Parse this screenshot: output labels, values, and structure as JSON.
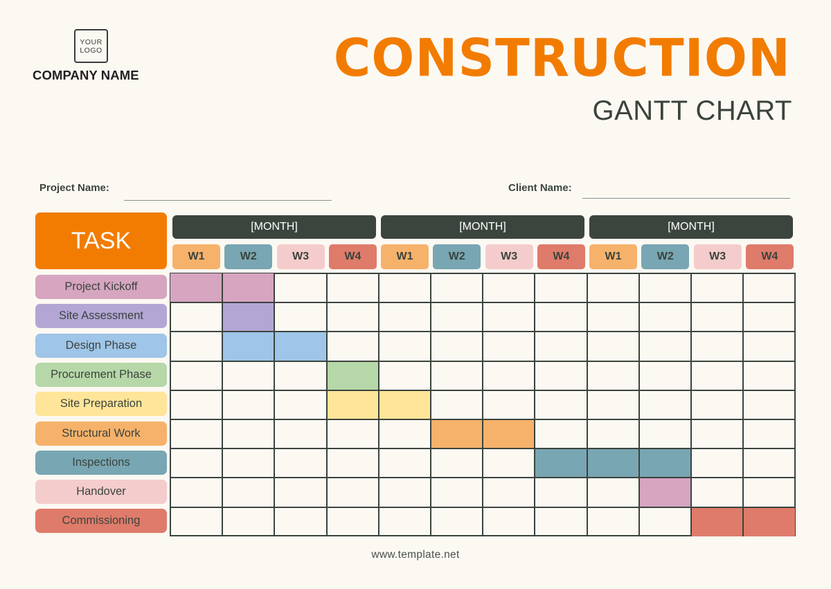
{
  "header": {
    "logo_line1": "YOUR",
    "logo_line2": "LOGO",
    "company_name": "COMPANY NAME",
    "title": "CONSTRUCTION",
    "subtitle": "GANTT CHART"
  },
  "fields": {
    "project_label": "Project Name:",
    "project_value": "",
    "client_label": "Client Name:",
    "client_value": ""
  },
  "table": {
    "task_header": "TASK",
    "months": [
      "[MONTH]",
      "[MONTH]",
      "[MONTH]"
    ],
    "weeks": [
      "W1",
      "W2",
      "W3",
      "W4",
      "W1",
      "W2",
      "W3",
      "W4",
      "W1",
      "W2",
      "W3",
      "W4"
    ],
    "week_colors": [
      "#f6b26b",
      "#78a6b2",
      "#f4cccc",
      "#df7b6a",
      "#f6b26b",
      "#78a6b2",
      "#f4cccc",
      "#df7b6a",
      "#f6b26b",
      "#78a6b2",
      "#f4cccc",
      "#df7b6a"
    ]
  },
  "chart_data": {
    "type": "gantt",
    "title": "CONSTRUCTION GANTT CHART",
    "columns": [
      "M1 W1",
      "M1 W2",
      "M1 W3",
      "M1 W4",
      "M2 W1",
      "M2 W2",
      "M2 W3",
      "M2 W4",
      "M3 W1",
      "M3 W2",
      "M3 W3",
      "M3 W4"
    ],
    "tasks": [
      {
        "name": "Project Kickoff",
        "color": "#d6a5c0",
        "start": 0,
        "end": 1
      },
      {
        "name": "Site Assessment",
        "color": "#b3a6d5",
        "start": 1,
        "end": 1
      },
      {
        "name": "Design Phase",
        "color": "#9fc5e8",
        "start": 1,
        "end": 2
      },
      {
        "name": "Procurement Phase",
        "color": "#b6d7a8",
        "start": 3,
        "end": 3
      },
      {
        "name": "Site Preparation",
        "color": "#ffe599",
        "start": 3,
        "end": 4
      },
      {
        "name": "Structural Work",
        "color": "#f6b26b",
        "start": 5,
        "end": 6
      },
      {
        "name": "Inspections",
        "color": "#78a6b2",
        "start": 7,
        "end": 9
      },
      {
        "name": "Handover",
        "color": "#d6a5c0",
        "start": 9,
        "end": 9,
        "label_color": "#f4cccc"
      },
      {
        "name": "Commissioning",
        "color": "#df7b6a",
        "start": 10,
        "end": 11
      }
    ]
  },
  "footer": {
    "url": "www.template.net"
  }
}
